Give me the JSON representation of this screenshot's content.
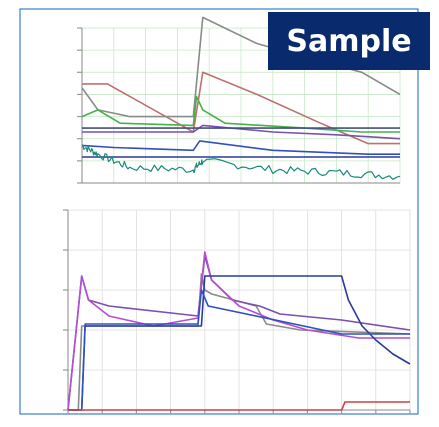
{
  "badge": {
    "label": "Sample"
  },
  "colors": {
    "frame": "#1565c0",
    "grid_top": "#c8e8c8",
    "grid_bottom": "#dcdcdc",
    "teal": "#1a8a7a",
    "navy": "#2a3a9a",
    "blue": "#3050c0",
    "green": "#48b048",
    "grey": "#8a8a8a",
    "pink": "#c07070",
    "purple": "#b050d0",
    "violet": "#7a50b0",
    "steel": "#405080",
    "red": "#d04040"
  },
  "chart_data": [
    {
      "type": "line",
      "title": "",
      "xlabel": "",
      "ylabel": "",
      "y_scale": "log",
      "ylim": [
        1e-10,
        0.001
      ],
      "xlim": [
        0,
        100
      ],
      "grid": true,
      "legend_position": "right",
      "series": [
        {
          "color": "pink",
          "x": [
            0,
            8,
            35,
            38,
            55,
            75,
            90,
            100
          ],
          "y": [
            3e-06,
            3e-06,
            2e-08,
            1e-05,
            1e-06,
            5e-08,
            6e-09,
            6e-09
          ]
        },
        {
          "color": "grey",
          "x": [
            0,
            5,
            15,
            35,
            38,
            55,
            70,
            88,
            100
          ],
          "y": [
            2e-06,
            2e-07,
            1e-07,
            1e-07,
            0.003,
            0.0002,
            5e-05,
            1e-05,
            1e-06
          ]
        },
        {
          "color": "green",
          "x": [
            0,
            5,
            12,
            35,
            36,
            38,
            45,
            70,
            88,
            100
          ],
          "y": [
            1e-07,
            2e-07,
            5e-08,
            4e-08,
            8e-07,
            2e-07,
            5e-08,
            3e-08,
            2e-08,
            2e-08
          ]
        },
        {
          "color": "violet",
          "x": [
            0,
            20,
            35,
            38,
            60,
            80,
            100
          ],
          "y": [
            2e-08,
            2e-08,
            2e-08,
            4e-08,
            2e-08,
            1.5e-08,
            1e-08
          ]
        },
        {
          "color": "steel",
          "x": [
            0,
            100
          ],
          "y": [
            3e-08,
            3e-08
          ]
        },
        {
          "color": "blue",
          "x": [
            0,
            10,
            35,
            37,
            60,
            90,
            100
          ],
          "y": [
            5e-09,
            4e-09,
            3e-09,
            8e-09,
            3e-09,
            2e-09,
            2e-09
          ]
        },
        {
          "color": "navy",
          "x": [
            0,
            100
          ],
          "y": [
            1.5e-09,
            1.5e-09
          ]
        },
        {
          "color": "teal",
          "noisy": true,
          "x": [
            0,
            5,
            15,
            35,
            38,
            60,
            80,
            100
          ],
          "y": [
            5e-09,
            2e-09,
            5e-10,
            4e-10,
            1e-09,
            4e-10,
            3e-10,
            2e-10
          ]
        }
      ]
    },
    {
      "type": "line",
      "title": "",
      "xlabel": "",
      "ylabel": "",
      "ylim": [
        0,
        100
      ],
      "xlim": [
        0,
        100
      ],
      "grid": true,
      "series": [
        {
          "color": "grey",
          "x": [
            0,
            3,
            4,
            7,
            38,
            39,
            40,
            42,
            55,
            58,
            68,
            100
          ],
          "y": [
            0,
            0,
            42,
            42,
            42,
            68,
            60,
            58,
            52,
            43,
            40,
            38
          ]
        },
        {
          "color": "violet",
          "x": [
            0,
            4,
            6,
            12,
            38,
            40,
            42,
            48,
            56,
            62,
            80,
            100
          ],
          "y": [
            0,
            67,
            55,
            52,
            47,
            77,
            65,
            55,
            52,
            48,
            45,
            40
          ]
        },
        {
          "color": "purple",
          "x": [
            0,
            4,
            6,
            12,
            25,
            38,
            40,
            42,
            50,
            60,
            70,
            85,
            100
          ],
          "y": [
            0,
            67,
            55,
            47,
            42,
            46,
            79,
            65,
            52,
            45,
            40,
            36,
            36
          ]
        },
        {
          "color": "navy",
          "x": [
            0,
            4,
            5,
            38,
            39,
            40,
            80,
            82,
            86,
            90,
            95,
            100
          ],
          "y": [
            0,
            0,
            42,
            42,
            42,
            67,
            67,
            55,
            42,
            35,
            28,
            23
          ]
        },
        {
          "color": "blue",
          "x": [
            0,
            4,
            5,
            38,
            39,
            41,
            80,
            100
          ],
          "y": [
            0,
            0,
            43,
            43,
            60,
            52,
            38,
            38
          ]
        },
        {
          "color": "red",
          "x": [
            0,
            80,
            81,
            100
          ],
          "y": [
            0,
            0,
            4,
            4
          ]
        }
      ]
    }
  ]
}
